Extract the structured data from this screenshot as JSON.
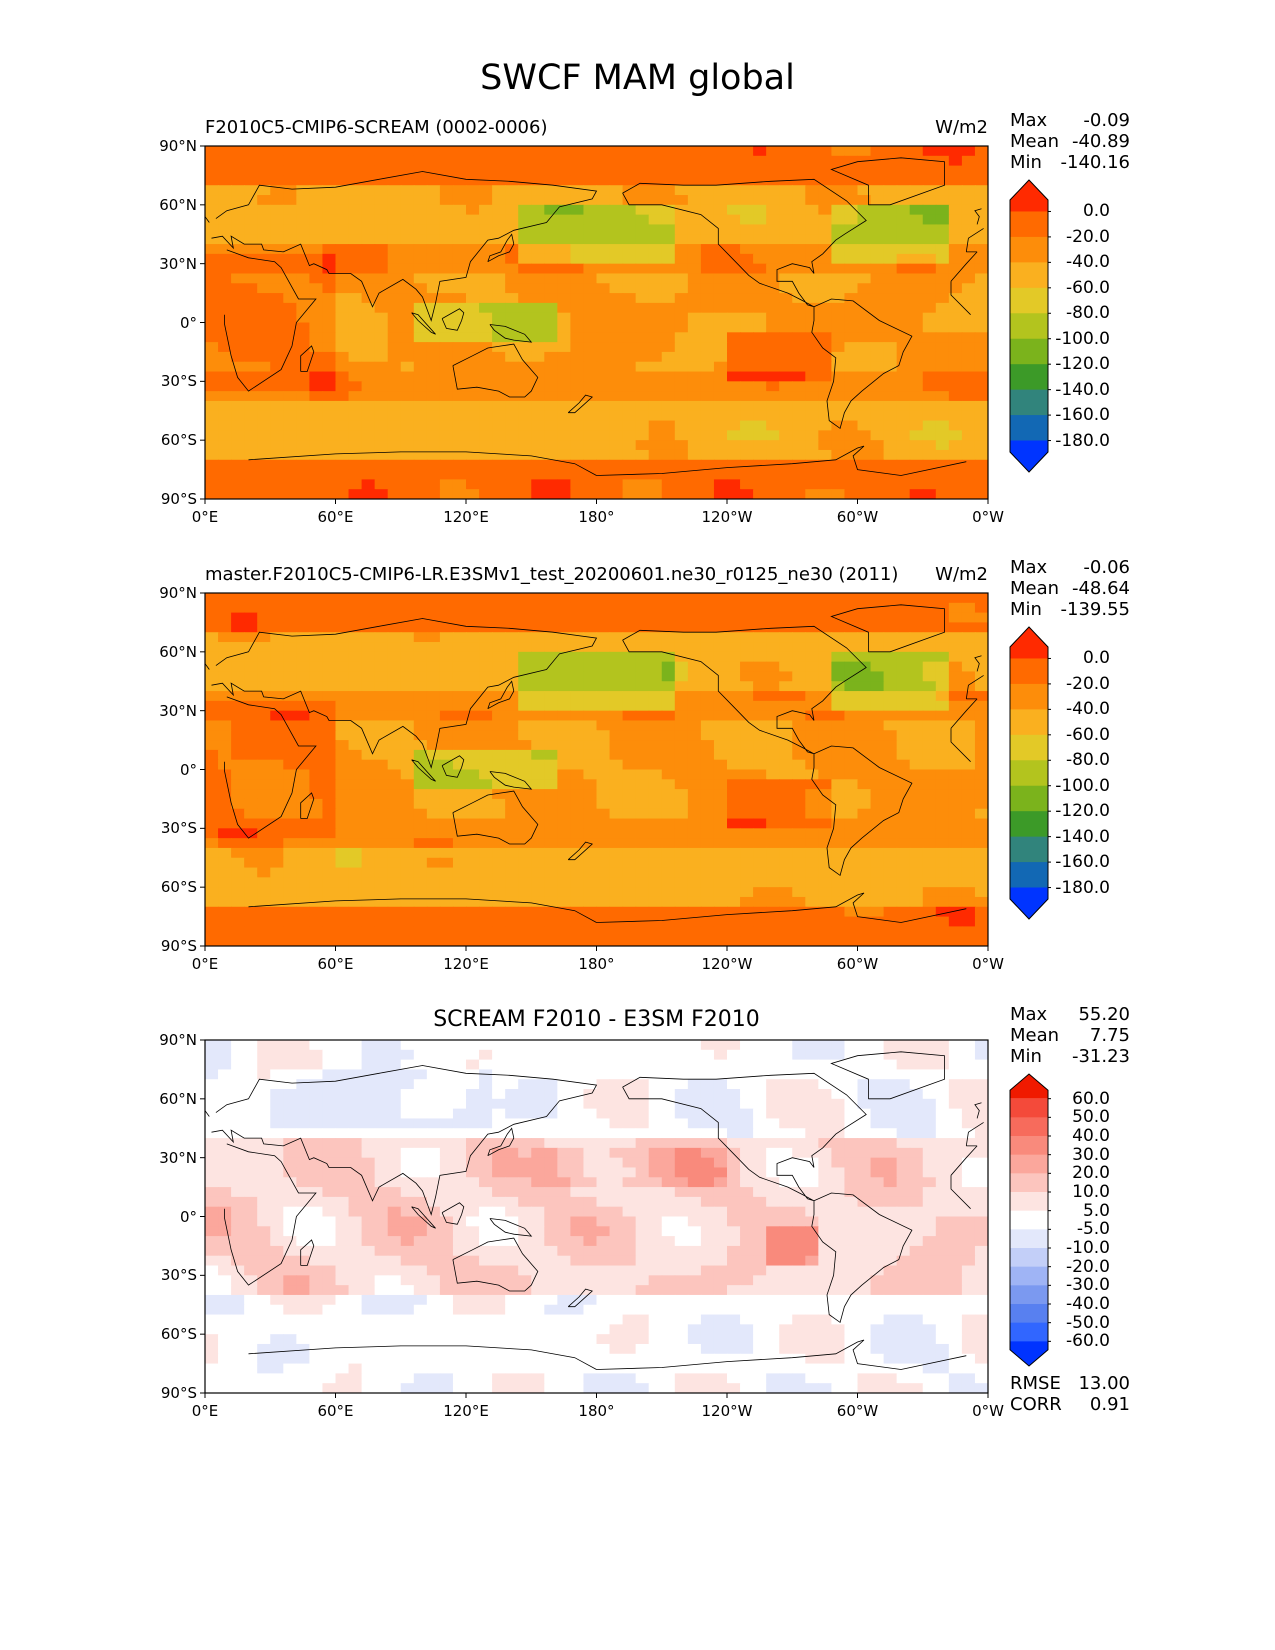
{
  "figure_title": "SWCF MAM global",
  "colors": {
    "levels_abs": [
      "#0034ff",
      "#1268b4",
      "#31847c",
      "#3c9a28",
      "#7bb31c",
      "#b3c41e",
      "#e3c927",
      "#fab01f",
      "#fd8d0a",
      "#ff6a00",
      "#ff2a00"
    ],
    "levels_diff": [
      "#0033ff",
      "#3166ff",
      "#5880f0",
      "#7b99f0",
      "#9fb4f5",
      "#c3cff8",
      "#e3e8fb",
      "#ffffff",
      "#fde4e1",
      "#fcc5be",
      "#fba79c",
      "#f98a7c",
      "#f76b5c",
      "#f44a3a",
      "#f01a00"
    ],
    "coast": "#000000"
  },
  "panels": [
    {
      "title_left": "F2010C5-CMIP6-SCREAM (0002-0006)",
      "title_right": "W/m2",
      "title_center": "",
      "stats": [
        {
          "label": "Max",
          "value": "-0.09"
        },
        {
          "label": "Mean",
          "value": "-40.89"
        },
        {
          "label": "Min",
          "value": "-140.16"
        }
      ],
      "colorbar": {
        "labels": [
          "0.0",
          "-20.0",
          "-40.0",
          "-60.0",
          "-80.0",
          "-100.0",
          "-120.0",
          "-140.0",
          "-160.0",
          "-180.0"
        ]
      },
      "footer": []
    },
    {
      "title_left": "master.F2010C5-CMIP6-LR.E3SMv1_test_20200601.ne30_r0125_ne30 (2011)",
      "title_right": "W/m2",
      "title_center": "",
      "stats": [
        {
          "label": "Max",
          "value": "-0.06"
        },
        {
          "label": "Mean",
          "value": "-48.64"
        },
        {
          "label": "Min",
          "value": "-139.55"
        }
      ],
      "colorbar": {
        "labels": [
          "0.0",
          "-20.0",
          "-40.0",
          "-60.0",
          "-80.0",
          "-100.0",
          "-120.0",
          "-140.0",
          "-160.0",
          "-180.0"
        ]
      },
      "footer": []
    },
    {
      "title_left": "",
      "title_right": "",
      "title_center": "SCREAM F2010 - E3SM F2010",
      "stats": [
        {
          "label": "Max",
          "value": "55.20"
        },
        {
          "label": "Mean",
          "value": "7.75"
        },
        {
          "label": "Min",
          "value": "-31.23"
        }
      ],
      "colorbar": {
        "labels": [
          "60.0",
          "50.0",
          "40.0",
          "30.0",
          "20.0",
          "10.0",
          "5.0",
          "-5.0",
          "-10.0",
          "-20.0",
          "-30.0",
          "-40.0",
          "-50.0",
          "-60.0"
        ]
      },
      "footer": [
        {
          "label": "RMSE",
          "value": "13.00"
        },
        {
          "label": "CORR",
          "value": "0.91"
        }
      ]
    }
  ],
  "axes": {
    "y_ticks": [
      "90°N",
      "60°N",
      "30°N",
      "0°",
      "30°S",
      "60°S",
      "90°S"
    ],
    "x_ticks": [
      "0°E",
      "60°E",
      "120°E",
      "180°",
      "120°W",
      "60°W",
      "0°W"
    ]
  }
}
